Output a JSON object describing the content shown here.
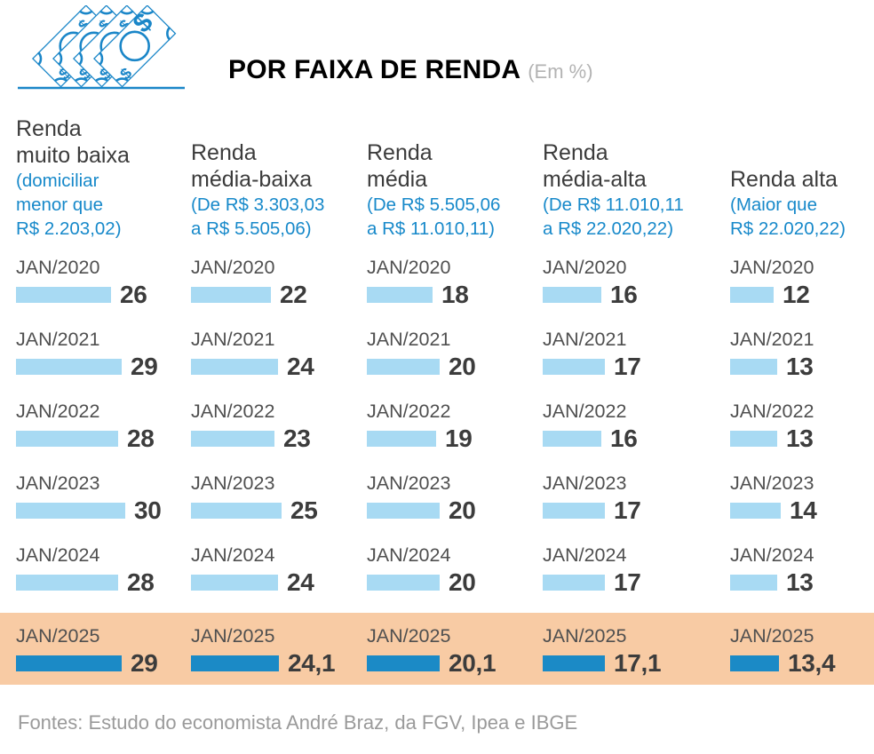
{
  "header": {
    "title": "POR FAIXA DE RENDA",
    "subtitle": "(Em %)",
    "icon": "banknotes-icon"
  },
  "columns": [
    {
      "name_lines": [
        "Renda",
        "muito baixa"
      ],
      "range_lines": [
        "(domiciliar",
        "menor que",
        "R$ 2.203,02)"
      ]
    },
    {
      "name_lines": [
        "Renda",
        "média-baixa"
      ],
      "range_lines": [
        "(De R$ 3.303,03",
        "a R$ 5.505,06)"
      ]
    },
    {
      "name_lines": [
        "Renda",
        "média"
      ],
      "range_lines": [
        "(De R$ 5.505,06",
        "a R$ 11.010,11)"
      ]
    },
    {
      "name_lines": [
        "Renda",
        "média-alta"
      ],
      "range_lines": [
        "(De R$ 11.010,11",
        "a R$ 22.020,22)"
      ]
    },
    {
      "name_lines": [
        "Renda alta"
      ],
      "range_lines": [
        "(Maior que",
        "R$ 22.020,22)"
      ]
    }
  ],
  "chart_data": {
    "type": "bar",
    "orientation": "horizontal",
    "title": "POR FAIXA DE RENDA",
    "unit": "Em %",
    "categories": [
      "JAN/2020",
      "JAN/2021",
      "JAN/2022",
      "JAN/2023",
      "JAN/2024",
      "JAN/2025"
    ],
    "series": [
      {
        "name": "Renda muito baixa",
        "range": "domiciliar menor que R$ 2.203,02",
        "values": [
          26,
          29,
          28,
          30,
          28,
          29
        ]
      },
      {
        "name": "Renda média-baixa",
        "range": "De R$ 3.303,03 a R$ 5.505,06",
        "values": [
          22,
          24,
          23,
          25,
          24,
          24.1
        ]
      },
      {
        "name": "Renda média",
        "range": "De R$ 5.505,06 a R$ 11.010,11",
        "values": [
          18,
          20,
          19,
          20,
          20,
          20.1
        ]
      },
      {
        "name": "Renda média-alta",
        "range": "De R$ 11.010,11 a R$ 22.020,22",
        "values": [
          16,
          17,
          16,
          17,
          17,
          17.1
        ]
      },
      {
        "name": "Renda alta",
        "range": "Maior que R$ 22.020,22",
        "values": [
          12,
          13,
          13,
          14,
          13,
          13.4
        ]
      }
    ],
    "highlight_category": "JAN/2025",
    "value_decimal_separator": ",",
    "legend_position": "none",
    "grid": false
  },
  "footer": "Fontes: Estudo do economista André Braz, da FGV, Ipea e IBGE",
  "colors": {
    "bar_light": "#a8daf3",
    "bar_dark": "#1b8ac6",
    "blue_text": "#1789ca",
    "highlight_bg": "#f8cba4",
    "icon_stroke": "#1a86c8",
    "title_color": "#000000",
    "subtitle_color": "#b3b3b3",
    "header_text": "#3c3c3c",
    "label_text": "#4f4f4f",
    "value_text": "#3c3c3c",
    "footer_text": "#9a9a9a"
  }
}
